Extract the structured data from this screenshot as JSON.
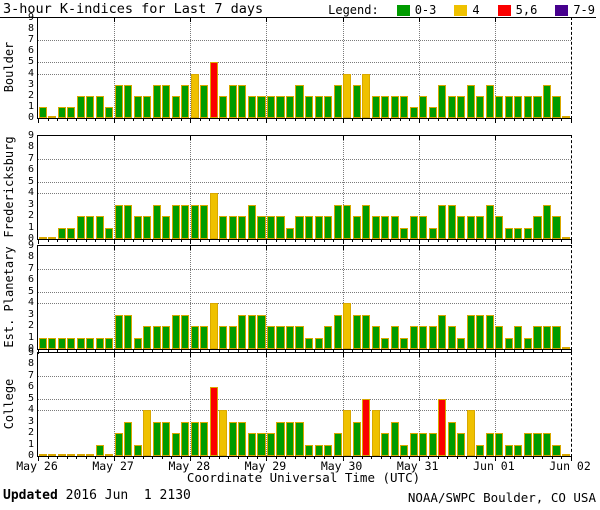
{
  "chart_data": {
    "type": "bar",
    "title": "3-hour K-indices for Last 7 days",
    "xlabel": "Coordinate Universal Time (UTC)",
    "ylim": [
      0,
      9
    ],
    "y_ticks": [
      0,
      1,
      2,
      3,
      4,
      5,
      6,
      7,
      8,
      9
    ],
    "gridlines_y": [
      4,
      5,
      7
    ],
    "grid": true,
    "hours_per_bar": 3,
    "bars_per_day": 8,
    "legend_position": "top-right",
    "legend_label": "Legend:",
    "legend": [
      {
        "label": "0-3",
        "color": "#009b00"
      },
      {
        "label": "4",
        "color": "#efc100"
      },
      {
        "label": "5,6",
        "color": "#fb0000"
      },
      {
        "label": "7-9",
        "color": "#46008d"
      }
    ],
    "bar_border_color": "#d9a800",
    "x_tick_labels": [
      "May 26",
      "May 27",
      "May 28",
      "May 29",
      "May 30",
      "May 31",
      "Jun 01",
      "Jun 02"
    ],
    "panels": [
      {
        "name": "Boulder",
        "values": [
          1,
          0,
          1,
          1,
          2,
          2,
          2,
          1,
          3,
          3,
          2,
          2,
          3,
          3,
          2,
          3,
          4,
          3,
          5,
          2,
          3,
          3,
          2,
          2,
          2,
          2,
          2,
          3,
          2,
          2,
          2,
          3,
          4,
          3,
          4,
          2,
          2,
          2,
          2,
          1,
          2,
          1,
          3,
          2,
          2,
          3,
          2,
          3,
          2,
          2,
          2,
          2,
          2,
          3,
          2,
          0
        ]
      },
      {
        "name": "Fredericksburg",
        "values": [
          0,
          0,
          1,
          1,
          2,
          2,
          2,
          1,
          3,
          3,
          2,
          2,
          3,
          2,
          3,
          3,
          3,
          3,
          4,
          2,
          2,
          2,
          3,
          2,
          2,
          2,
          1,
          2,
          2,
          2,
          2,
          3,
          3,
          2,
          3,
          2,
          2,
          2,
          1,
          2,
          2,
          1,
          3,
          3,
          2,
          2,
          2,
          3,
          2,
          1,
          1,
          1,
          2,
          3,
          2,
          0
        ]
      },
      {
        "name": "Est. Planetary",
        "values": [
          1,
          1,
          1,
          1,
          1,
          1,
          1,
          1,
          3,
          3,
          1,
          2,
          2,
          2,
          3,
          3,
          2,
          2,
          4,
          2,
          2,
          3,
          3,
          3,
          2,
          2,
          2,
          2,
          1,
          1,
          2,
          3,
          4,
          3,
          3,
          2,
          1,
          2,
          1,
          2,
          2,
          2,
          3,
          2,
          1,
          3,
          3,
          3,
          2,
          1,
          2,
          1,
          2,
          2,
          2,
          0
        ]
      },
      {
        "name": "College",
        "values": [
          0,
          0,
          0,
          0,
          0,
          0,
          1,
          0,
          2,
          3,
          1,
          4,
          3,
          3,
          2,
          3,
          3,
          3,
          6,
          4,
          3,
          3,
          2,
          2,
          2,
          3,
          3,
          3,
          1,
          1,
          1,
          2,
          4,
          3,
          5,
          4,
          2,
          3,
          1,
          2,
          2,
          2,
          5,
          3,
          2,
          4,
          1,
          2,
          2,
          1,
          1,
          2,
          2,
          2,
          1,
          0
        ]
      }
    ]
  },
  "footer": {
    "updated_label": "Updated",
    "updated_value": " 2016 Jun  1 2130",
    "credit": "NOAA/SWPC Boulder, CO USA"
  }
}
